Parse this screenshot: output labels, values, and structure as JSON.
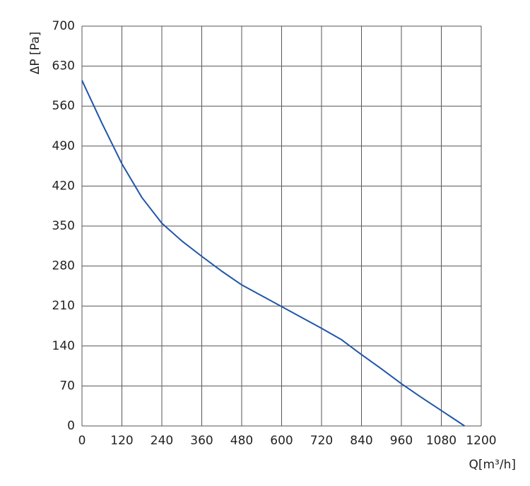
{
  "chart_data": {
    "type": "line",
    "x_label": "Q[m³/h]",
    "y_label": "ΔP [Pa]",
    "x": [
      0,
      60,
      120,
      180,
      240,
      300,
      360,
      420,
      480,
      540,
      600,
      660,
      720,
      780,
      840,
      900,
      960,
      1020,
      1080,
      1150
    ],
    "series": [
      {
        "name": "ΔP",
        "color": "#1f56a8",
        "values": [
          605,
          530,
          459,
          400,
          355,
          324,
          297,
          271,
          247,
          228,
          209,
          190,
          171,
          151,
          125,
          100,
          74,
          50,
          27,
          0
        ]
      }
    ],
    "xlim": [
      0,
      1200
    ],
    "xticks": [
      0,
      120,
      240,
      360,
      480,
      600,
      720,
      840,
      960,
      1080,
      1200
    ],
    "ylim": [
      0,
      700
    ],
    "yticks": [
      0,
      70,
      140,
      210,
      280,
      350,
      420,
      490,
      560,
      630,
      700
    ],
    "grid": true
  }
}
